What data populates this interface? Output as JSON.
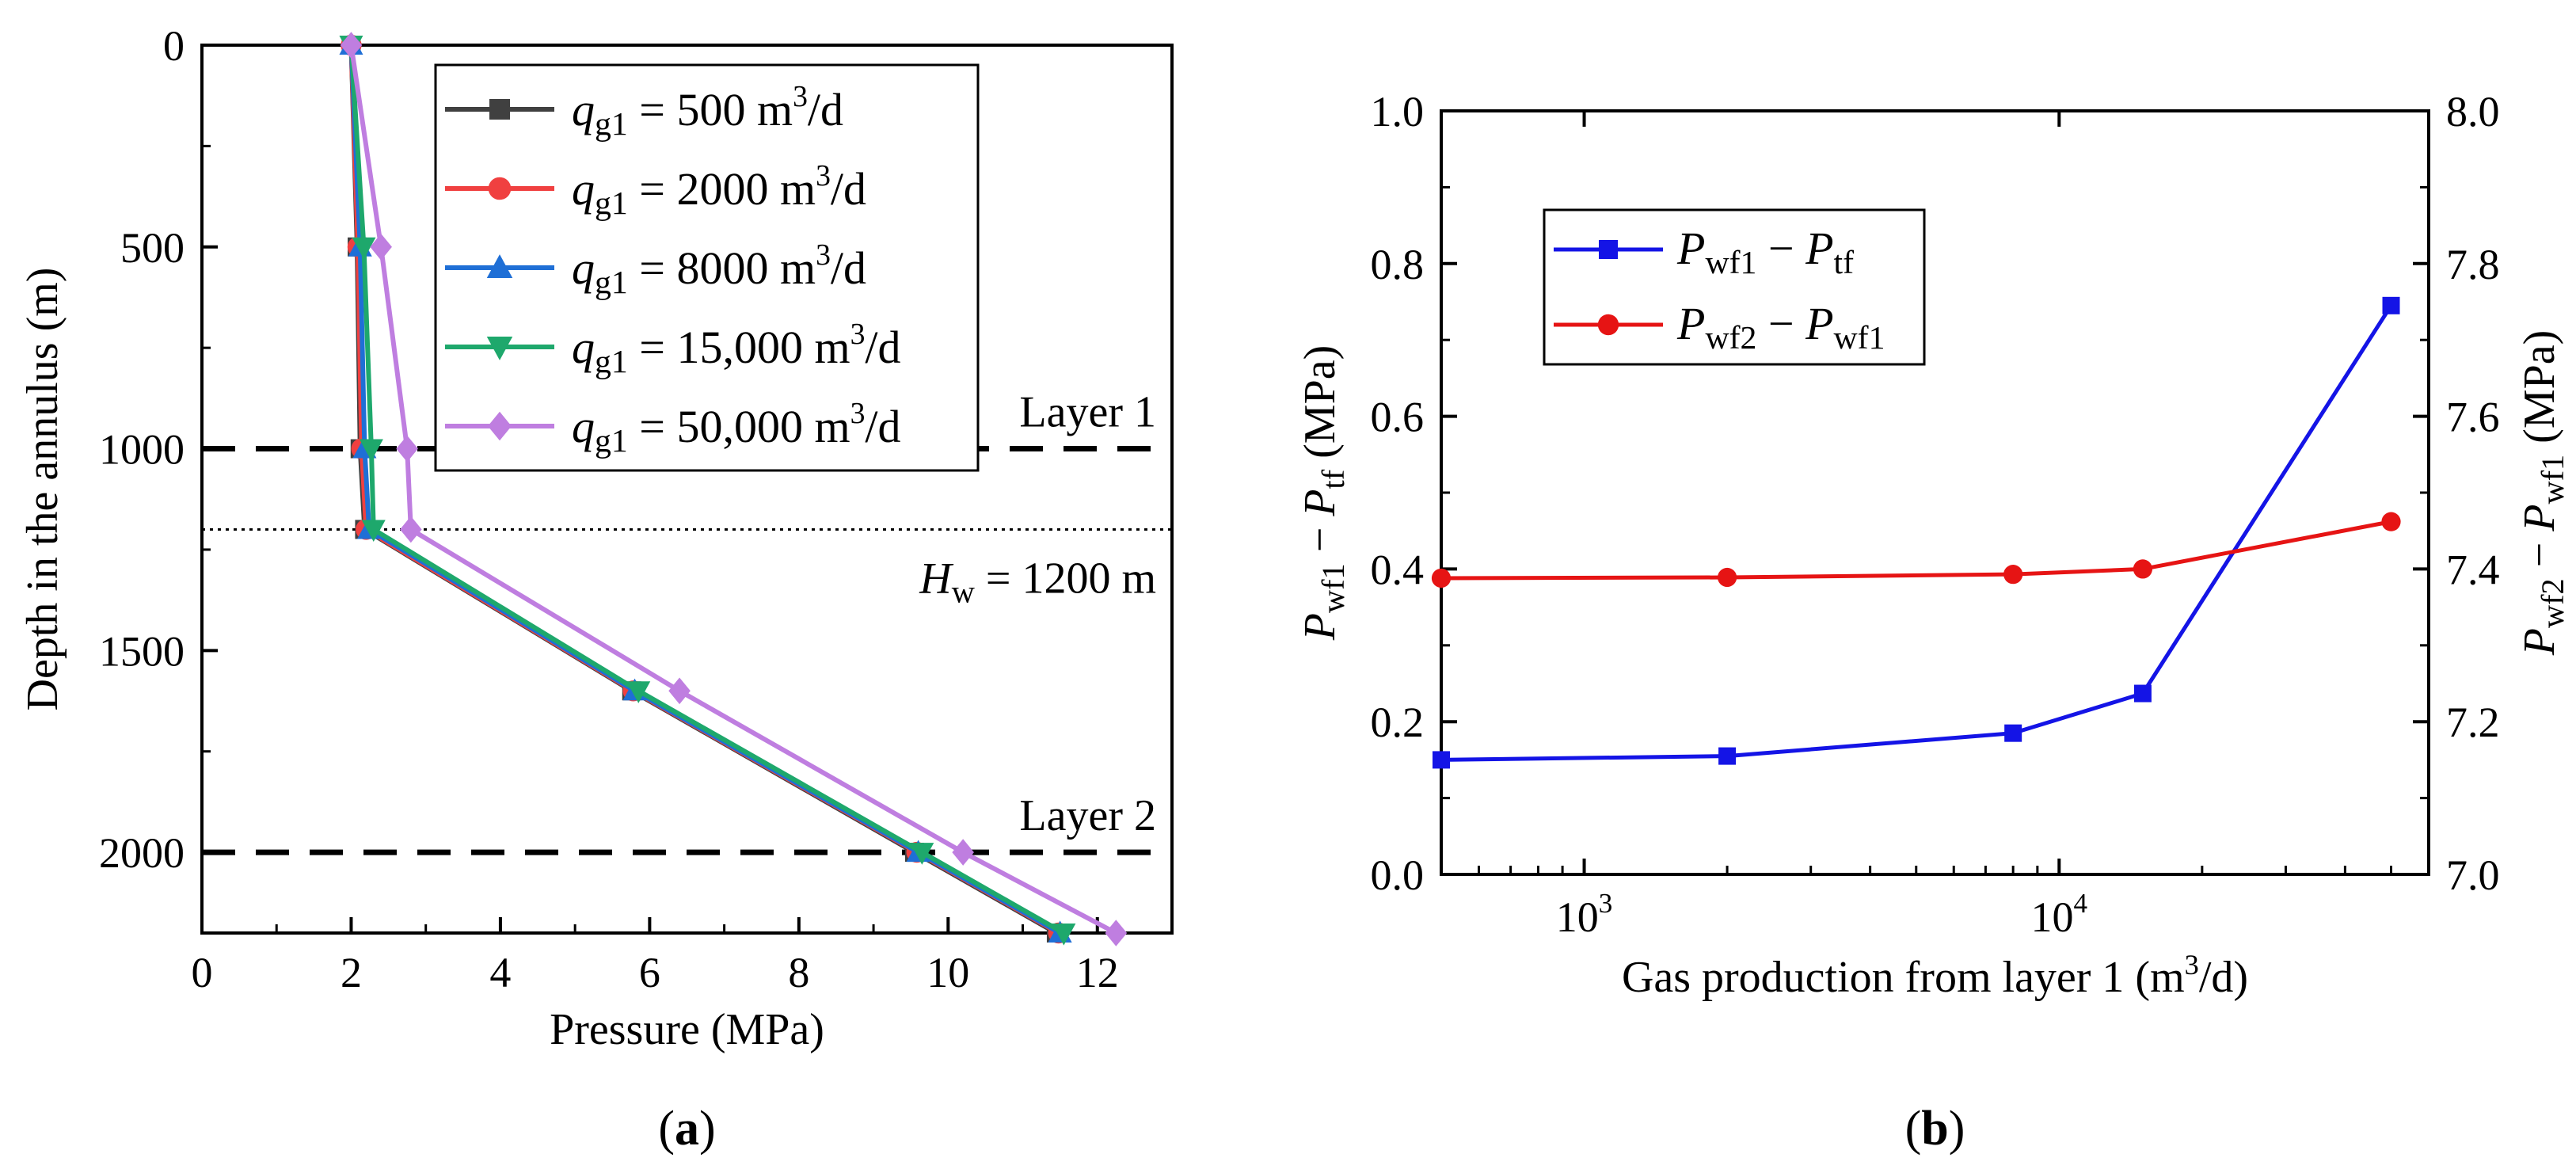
{
  "chart_data": [
    {
      "id": "a",
      "type": "line",
      "panel_label": "a",
      "xlabel": "Pressure (MPa)",
      "ylabel": "Depth in the annulus (m)",
      "xlim": [
        0,
        13
      ],
      "ylim": [
        2200,
        0
      ],
      "y_inverted": true,
      "xticks": [
        0,
        2,
        4,
        6,
        8,
        10,
        12
      ],
      "yticks": [
        0,
        500,
        1000,
        1500,
        2000
      ],
      "legend_position": "top-right",
      "series": [
        {
          "name": "500",
          "prefix": "q",
          "sub": "g1",
          "unit": " m",
          "sup": "3",
          "unit_tail": "/d",
          "color": "#404040",
          "marker": "square",
          "x": [
            2.0,
            2.08,
            2.12,
            2.18,
            5.76,
            9.55,
            11.45
          ],
          "y": [
            0,
            500,
            1000,
            1200,
            1600,
            2000,
            2200
          ]
        },
        {
          "name": "2000",
          "prefix": "q",
          "sub": "g1",
          "unit": " m",
          "sup": "3",
          "unit_tail": "/d",
          "color": "#f04040",
          "marker": "circle",
          "x": [
            2.0,
            2.09,
            2.14,
            2.2,
            5.78,
            9.58,
            11.48
          ],
          "y": [
            0,
            500,
            1000,
            1200,
            1600,
            2000,
            2200
          ]
        },
        {
          "name": "8000",
          "prefix": "q",
          "sub": "g1",
          "unit": " m",
          "sup": "3",
          "unit_tail": "/d",
          "color": "#1f6fd6",
          "marker": "triangle-up",
          "x": [
            2.0,
            2.12,
            2.18,
            2.24,
            5.8,
            9.6,
            11.5
          ],
          "y": [
            0,
            500,
            1000,
            1200,
            1600,
            2000,
            2200
          ]
        },
        {
          "name": "15,000",
          "prefix": "q",
          "sub": "g1",
          "unit": " m",
          "sup": "3",
          "unit_tail": "/d",
          "color": "#1ea86c",
          "marker": "triangle-down",
          "x": [
            2.0,
            2.17,
            2.27,
            2.3,
            5.85,
            9.65,
            11.55
          ],
          "y": [
            0,
            500,
            1000,
            1200,
            1600,
            2000,
            2200
          ]
        },
        {
          "name": "50,000",
          "prefix": "q",
          "sub": "g1",
          "unit": " m",
          "sup": "3",
          "unit_tail": "/d",
          "color": "#bf7ee0",
          "marker": "diamond",
          "x": [
            2.0,
            2.4,
            2.75,
            2.8,
            6.4,
            10.2,
            12.25
          ],
          "y": [
            0,
            500,
            1000,
            1200,
            1600,
            2000,
            2200
          ]
        }
      ],
      "reference_lines": [
        {
          "y": 1000,
          "style": "dashed",
          "label": "Layer 1"
        },
        {
          "y": 1200,
          "style": "dotted",
          "label_italic": "H",
          "label_sub": "w",
          "label_rest": " = 1200 m"
        },
        {
          "y": 2000,
          "style": "dashed",
          "label": "Layer 2"
        }
      ]
    },
    {
      "id": "b",
      "type": "line",
      "panel_label": "b",
      "xlabel": "Gas production from layer 1 (m",
      "xlabel_sup": "3",
      "xlabel_tail": "/d)",
      "xscale": "log",
      "xlim": [
        500,
        60000
      ],
      "xticks": [
        {
          "base": "10",
          "exp": "3",
          "value": 1000
        },
        {
          "base": "10",
          "exp": "4",
          "value": 10000
        }
      ],
      "y_left": {
        "lim": [
          0.0,
          1.0
        ],
        "ticks": [
          "0.0",
          "0.2",
          "0.4",
          "0.6",
          "0.8",
          "1.0"
        ],
        "label": {
          "p1": "P",
          "s1": "wf1",
          "mid": " − ",
          "p2": "P",
          "s2": "tf",
          "tail": " (MPa)"
        }
      },
      "y_right": {
        "lim": [
          7.0,
          8.0
        ],
        "ticks": [
          "7.0",
          "7.2",
          "7.4",
          "7.6",
          "7.8",
          "8.0"
        ],
        "label": {
          "p1": "P",
          "s1": "wf2",
          "mid": " − ",
          "p2": "P",
          "s2": "wf1",
          "tail": " (MPa)"
        }
      },
      "legend_position": "upper-left",
      "series": [
        {
          "axis": "left",
          "color": "#1414e6",
          "marker": "square",
          "label": {
            "p1": "P",
            "s1": "wf1",
            "mid": " − ",
            "p2": "P",
            "s2": "tf"
          },
          "x": [
            500,
            2000,
            8000,
            15000,
            50000
          ],
          "y": [
            0.15,
            0.155,
            0.185,
            0.237,
            0.745
          ]
        },
        {
          "axis": "right",
          "color": "#e61414",
          "marker": "circle",
          "label": {
            "p1": "P",
            "s1": "wf2",
            "mid": " − ",
            "p2": "P",
            "s2": "wf1"
          },
          "x": [
            500,
            2000,
            8000,
            15000,
            50000
          ],
          "y": [
            7.388,
            7.389,
            7.393,
            7.4,
            7.462
          ]
        }
      ]
    }
  ]
}
